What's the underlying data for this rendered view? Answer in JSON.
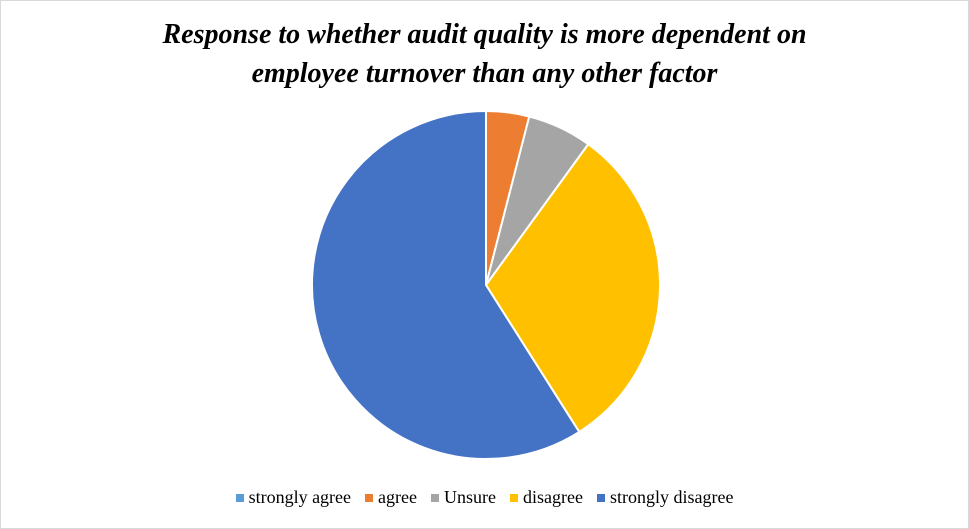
{
  "chart_data": {
    "type": "pie",
    "title_lines": [
      "Response to whether audit quality is more dependent on",
      "employee turnover than any other factor"
    ],
    "categories": [
      "strongly agree",
      "agree",
      "Unsure",
      "disagree",
      "strongly disagree"
    ],
    "values": [
      0,
      4,
      6,
      31,
      59
    ],
    "colors": [
      "#5b9bd5",
      "#ed7d31",
      "#a5a5a5",
      "#ffc000",
      "#4472c4"
    ],
    "start_angle_deg": 0,
    "direction": "clockwise",
    "legend_position": "bottom"
  }
}
